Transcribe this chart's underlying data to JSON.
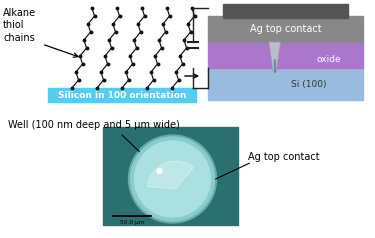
{
  "fig_width": 3.75,
  "fig_height": 2.38,
  "dpi": 100,
  "bg_color": "#ffffff",
  "top_left_label": "Alkane\nthiol\nchains",
  "silicon_label": "Silicon in 100 orientation",
  "silicon_bg": "#55ccf0",
  "ag_top_label": "Ag top contact",
  "oxide_label": "oxide",
  "si100_label": "Si (100)",
  "ag_color": "#888888",
  "ag_dark_color": "#555555",
  "oxide_color": "#aa77cc",
  "si_color": "#99bbdd",
  "well_label": "Well (100 nm deep and 5 µm wide)",
  "ag_contact_label": "Ag top contact",
  "scale_label": "50.0 μm",
  "photo_bg": "#2a7070",
  "circle_light": "#aae0e0",
  "circle_mid": "#88cccc",
  "circle_dark": "#66aaaa",
  "chain_color": "#111111",
  "cap_symbol_color": "#222222"
}
